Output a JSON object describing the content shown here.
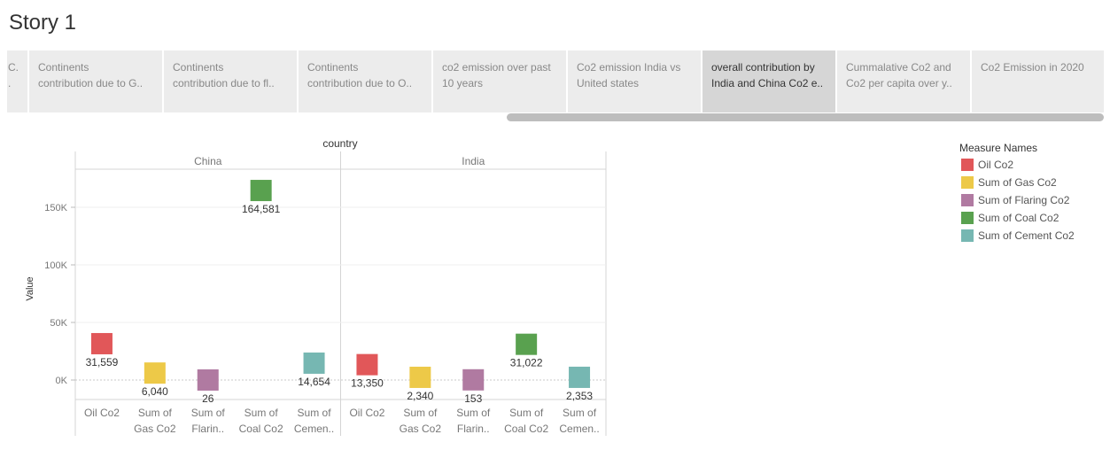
{
  "story": {
    "title": "Story 1"
  },
  "nav": {
    "tabs": [
      {
        "line1": "C.",
        "line2": "."
      },
      {
        "line1": "Continents",
        "line2": "contribution due to G.."
      },
      {
        "line1": "Continents",
        "line2": "contribution due to fl.."
      },
      {
        "line1": "Continents",
        "line2": "contribution due to O.."
      },
      {
        "line1": "co2 emission over past",
        "line2": "10 years"
      },
      {
        "line1": "Co2 emission  India vs",
        "line2": "United states"
      },
      {
        "line1": "overall contribution by",
        "line2": "India and China Co2 e.."
      },
      {
        "line1": "Cummalative Co2 and",
        "line2": "Co2 per capita over y.."
      },
      {
        "line1": "Co2 Emission in 2020",
        "line2": ""
      }
    ],
    "selected_index": 6
  },
  "legend": {
    "title": "Measure Names",
    "items": [
      {
        "label": "Oil Co2",
        "color": "#e15759"
      },
      {
        "label": "Sum of Gas Co2",
        "color": "#edc948"
      },
      {
        "label": "Sum of Flaring Co2",
        "color": "#b07aa1"
      },
      {
        "label": "Sum of Coal Co2",
        "color": "#59a14f"
      },
      {
        "label": "Sum of Cement Co2",
        "color": "#76b7b2"
      }
    ]
  },
  "chart_data": {
    "type": "scatter",
    "mark": "square",
    "column_header": "country",
    "ylabel": "Value",
    "ylim": [
      -10000,
      185000
    ],
    "y_ticks": [
      0,
      50000,
      100000,
      150000
    ],
    "y_tick_labels": [
      "0K",
      "50K",
      "100K",
      "150K"
    ],
    "panels": [
      "China",
      "India"
    ],
    "measure_labels": [
      {
        "line1": "Oil Co2",
        "line2": ""
      },
      {
        "line1": "Sum of",
        "line2": "Gas Co2"
      },
      {
        "line1": "Sum of",
        "line2": "Flarin.."
      },
      {
        "line1": "Sum of",
        "line2": "Coal Co2"
      },
      {
        "line1": "Sum of",
        "line2": "Cemen.."
      }
    ],
    "series": [
      {
        "name": "Oil Co2",
        "color": "#e15759",
        "values": [
          31559,
          13350
        ],
        "labels": [
          "31,559",
          "13,350"
        ]
      },
      {
        "name": "Sum of Gas Co2",
        "color": "#edc948",
        "values": [
          6040,
          2340
        ],
        "labels": [
          "6,040",
          "2,340"
        ]
      },
      {
        "name": "Sum of Flaring Co2",
        "color": "#b07aa1",
        "values": [
          26,
          153
        ],
        "labels": [
          "26",
          "153"
        ]
      },
      {
        "name": "Sum of Coal Co2",
        "color": "#59a14f",
        "values": [
          164581,
          31022
        ],
        "labels": [
          "164,581",
          "31,022"
        ]
      },
      {
        "name": "Sum of Cement Co2",
        "color": "#76b7b2",
        "values": [
          14654,
          2353
        ],
        "labels": [
          "14,654",
          "2,353"
        ]
      }
    ]
  }
}
